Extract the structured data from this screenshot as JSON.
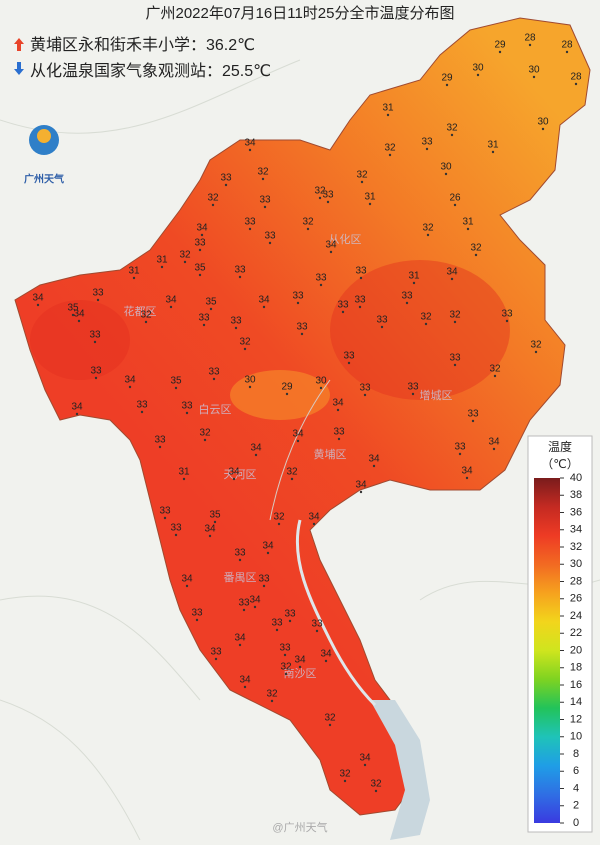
{
  "title": "广州2022年07月16日11时25分全市温度分布图",
  "stations": [
    {
      "marker": "max",
      "text": "黄埔区永和街禾丰小学：36.2℃"
    },
    {
      "marker": "min",
      "text": "从化温泉国家气象观测站：25.5℃"
    }
  ],
  "logo": "广州天气",
  "legend": {
    "title": "温度",
    "unit": "（℃）",
    "range": [
      0,
      40
    ],
    "ticks": [
      0,
      2,
      4,
      6,
      8,
      10,
      12,
      14,
      16,
      18,
      20,
      22,
      24,
      26,
      28,
      30,
      32,
      34,
      36,
      38,
      40
    ],
    "colors": [
      "#7a1c1c",
      "#c42a22",
      "#ee3b24",
      "#f26a22",
      "#f6a21e",
      "#f2d51c",
      "#cfe51e",
      "#7ed321",
      "#22c35a",
      "#1fc3b8",
      "#1f9ee6",
      "#2f6fe4",
      "#3a3ae0"
    ]
  },
  "map": {
    "labels": [
      28,
      28,
      29,
      30,
      30,
      28,
      29,
      31,
      32,
      30,
      31,
      32,
      33,
      30,
      32,
      33,
      31,
      26,
      32,
      31,
      32,
      34,
      32,
      33,
      32,
      33,
      32,
      33,
      32,
      33,
      34,
      33,
      32,
      31,
      31,
      35,
      33,
      34,
      33,
      33,
      33,
      31,
      34,
      33,
      33,
      34,
      35,
      34,
      33,
      34,
      35,
      32,
      34,
      33,
      33,
      32,
      33,
      33,
      33,
      33,
      32,
      32,
      33,
      32,
      33,
      33,
      32,
      33,
      34,
      35,
      33,
      30,
      29,
      30,
      33,
      33,
      34,
      33,
      33,
      34,
      33,
      33,
      32,
      34,
      34,
      33,
      34,
      33,
      34,
      31,
      34,
      32,
      34,
      34,
      33,
      35,
      32,
      34,
      33,
      34,
      34,
      33,
      34,
      33,
      33,
      33,
      34,
      33,
      33,
      33,
      34,
      33,
      34,
      33,
      32,
      34,
      32,
      34,
      32,
      34,
      32,
      32
    ],
    "districts": [
      "从化区",
      "花都区",
      "白云区",
      "天河区",
      "黄埔区",
      "增城区",
      "番禺区",
      "南沙区"
    ]
  },
  "watermark": "@广州天气"
}
